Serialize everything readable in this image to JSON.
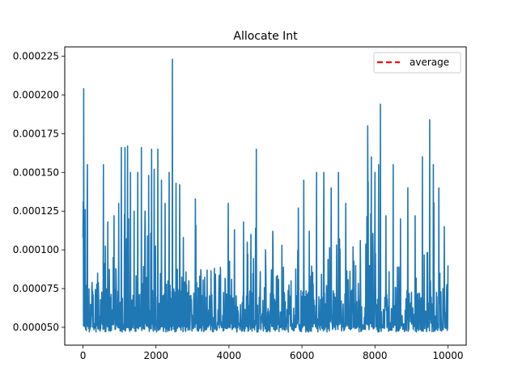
{
  "chart_data": {
    "type": "line",
    "title": "Allocate Int",
    "xlabel": "",
    "ylabel": "",
    "xlim": [
      -500,
      10500
    ],
    "ylim": [
      3.85e-05,
      0.000231
    ],
    "x_ticks": [
      0,
      2000,
      4000,
      6000,
      8000,
      10000
    ],
    "x_tick_labels": [
      "0",
      "2000",
      "4000",
      "6000",
      "8000",
      "10000"
    ],
    "y_ticks": [
      5e-05,
      7.5e-05,
      0.0001,
      0.000125,
      0.00015,
      0.000175,
      0.0002,
      0.000225
    ],
    "y_tick_labels": [
      "0.000050",
      "0.000075",
      "0.000100",
      "0.000125",
      "0.000150",
      "0.000175",
      "0.000200",
      "0.000225"
    ],
    "grid": false,
    "legend": {
      "placement": "top-right",
      "entries": [
        "average"
      ]
    },
    "series": [
      {
        "color": "#1f77b4",
        "style": "solid",
        "x_range": [
          0,
          10000
        ],
        "baseline_min": 4.7e-05,
        "typical_upper": 9e-05,
        "peaks": [
          [
            0,
            0.000108
          ],
          [
            20,
            0.000204
          ],
          [
            60,
            0.000126
          ],
          [
            120,
            0.000155
          ],
          [
            250,
            7.9e-05
          ],
          [
            400,
            8.5e-05
          ],
          [
            560,
            0.000155
          ],
          [
            680,
            0.000118
          ],
          [
            850,
            0.000122
          ],
          [
            980,
            0.00013
          ],
          [
            1050,
            0.000166
          ],
          [
            1150,
            0.000166
          ],
          [
            1220,
            0.000167
          ],
          [
            1300,
            0.00015
          ],
          [
            1400,
            0.000125
          ],
          [
            1500,
            0.00015
          ],
          [
            1600,
            0.000166
          ],
          [
            1700,
            0.000125
          ],
          [
            1800,
            0.000148
          ],
          [
            1880,
            0.000165
          ],
          [
            1950,
            0.000152
          ],
          [
            2050,
            0.000165
          ],
          [
            2150,
            0.000145
          ],
          [
            2250,
            0.00013
          ],
          [
            2360,
            0.00015
          ],
          [
            2450,
            0.000223
          ],
          [
            2550,
            0.000143
          ],
          [
            2650,
            0.000142
          ],
          [
            2750,
            0.000108
          ],
          [
            2900,
            8e-05
          ],
          [
            3080,
            0.000133
          ],
          [
            3200,
            8.3e-05
          ],
          [
            3400,
            8.7e-05
          ],
          [
            3600,
            8.8e-05
          ],
          [
            3750,
            7.8e-05
          ],
          [
            3900,
            8e-05
          ],
          [
            3980,
            0.00013
          ],
          [
            4150,
            0.000113
          ],
          [
            4400,
            0.000118
          ],
          [
            4500,
            0.000105
          ],
          [
            4600,
            0.00011
          ],
          [
            4750,
            0.000165
          ],
          [
            5000,
            0.0001
          ],
          [
            5200,
            0.000112
          ],
          [
            5450,
            0.000103
          ],
          [
            5700,
            8e-05
          ],
          [
            5900,
            0.000127
          ],
          [
            6050,
            0.000145
          ],
          [
            6200,
            0.000112
          ],
          [
            6400,
            0.00015
          ],
          [
            6600,
            0.00015
          ],
          [
            6800,
            0.00014
          ],
          [
            7000,
            0.00015
          ],
          [
            7200,
            0.00013
          ],
          [
            7400,
            0.000102
          ],
          [
            7600,
            0.000106
          ],
          [
            7800,
            0.00018
          ],
          [
            7900,
            0.00016
          ],
          [
            8000,
            0.00015
          ],
          [
            8100,
            0.000155
          ],
          [
            8150,
            0.000194
          ],
          [
            8300,
            0.000122
          ],
          [
            8500,
            0.000155
          ],
          [
            8700,
            0.00012
          ],
          [
            8900,
            0.00014
          ],
          [
            9100,
            0.000122
          ],
          [
            9300,
            0.00016
          ],
          [
            9500,
            0.000184
          ],
          [
            9600,
            0.000155
          ],
          [
            9750,
            0.00014
          ],
          [
            9900,
            0.000115
          ],
          [
            10000,
            9e-05
          ]
        ]
      },
      {
        "name": "average",
        "color": "#ff0000",
        "style": "dashed"
      }
    ]
  }
}
